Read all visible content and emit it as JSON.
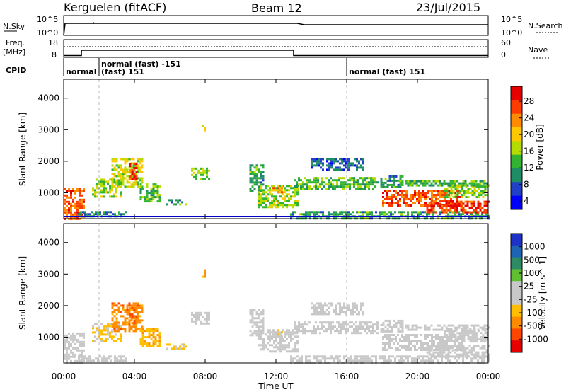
{
  "header": {
    "station": "Kerguelen (fitACF)",
    "beam": "Beam 12",
    "date": "23/Jul/2015"
  },
  "status_panels": {
    "nsky_label": "N.Sky",
    "nsky_ticks": [
      "10^5",
      "10^0"
    ],
    "nsearch_label": "N.Search",
    "nsearch_ticks": [
      "10^5",
      "10^0"
    ],
    "freq_label_line1": "Freq.",
    "freq_label_line2": "[MHz]",
    "freq_ticks": [
      "18",
      "8"
    ],
    "nave_label": "Nave",
    "nave_ticks": [
      "60",
      "0"
    ],
    "cpid_label": "CPID",
    "cpid_segments": [
      {
        "text": "normal",
        "start_h": 0.0
      },
      {
        "text": "normal (fast) -151",
        "start_h": 2.0
      },
      {
        "text": "(fast) 151",
        "start_h": 2.0
      },
      {
        "text": "normal (fast) 151",
        "start_h": 16.0
      }
    ],
    "freq_mhz": [
      {
        "from_h": 0,
        "to_h": 1.0,
        "value": 9
      },
      {
        "from_h": 1.0,
        "to_h": 13.0,
        "value": 12
      },
      {
        "from_h": 13.0,
        "to_h": 24,
        "value": 9
      }
    ]
  },
  "colors": {
    "power_scale": [
      "#0000ff",
      "#2040c8",
      "#1e8c64",
      "#32b432",
      "#b4dc00",
      "#ffc800",
      "#ff8c00",
      "#ff3c00",
      "#e60000"
    ],
    "velocity_scale": [
      "#1e32c8",
      "#1e64b4",
      "#2d8c64",
      "#5fbe32",
      "#c8c8c8",
      "#c8c8c8",
      "#ffbe00",
      "#ff8c00",
      "#ff4600",
      "#e60000"
    ]
  },
  "chart_data": [
    {
      "type": "heatmap",
      "title": "",
      "xlabel": "",
      "ylabel": "Slant Range [km]",
      "xlim": [
        0,
        24
      ],
      "ylim": [
        180,
        4600
      ],
      "x_ticks": [
        "00:00",
        "04:00",
        "08:00",
        "12:00",
        "16:00",
        "20:00",
        "00:00"
      ],
      "y_ticks": [
        "1000",
        "2000",
        "3000",
        "4000"
      ],
      "colorbar_label": "Power [dB]",
      "colorbar_ticks": [
        "28",
        "24",
        "20",
        "16",
        "12",
        "8",
        "4"
      ],
      "colorbar_range": [
        0,
        30
      ],
      "regions": [
        {
          "t0": 0.0,
          "t1": 1.1,
          "r0": 200,
          "r1": 1150,
          "v": 24
        },
        {
          "t0": 0.8,
          "t1": 3.5,
          "r0": 250,
          "r1": 420,
          "v": 8
        },
        {
          "t0": 1.6,
          "t1": 3.2,
          "r0": 900,
          "r1": 1450,
          "v": 14
        },
        {
          "t0": 2.7,
          "t1": 4.4,
          "r0": 1200,
          "r1": 2100,
          "v": 16
        },
        {
          "t0": 3.7,
          "t1": 4.1,
          "r0": 1450,
          "r1": 1950,
          "v": 26
        },
        {
          "t0": 4.3,
          "t1": 5.4,
          "r0": 700,
          "r1": 1300,
          "v": 12
        },
        {
          "t0": 5.8,
          "t1": 7.0,
          "r0": 650,
          "r1": 800,
          "v": 10
        },
        {
          "t0": 7.2,
          "t1": 8.2,
          "r0": 1400,
          "r1": 1800,
          "v": 14
        },
        {
          "t0": 7.8,
          "t1": 8.0,
          "r0": 2900,
          "r1": 3150,
          "v": 16
        },
        {
          "t0": 10.5,
          "t1": 11.3,
          "r0": 1050,
          "r1": 1900,
          "v": 10
        },
        {
          "t0": 11.0,
          "t1": 13.2,
          "r0": 550,
          "r1": 1250,
          "v": 14
        },
        {
          "t0": 11.8,
          "t1": 12.3,
          "r0": 1000,
          "r1": 1250,
          "v": 22
        },
        {
          "t0": 13.0,
          "t1": 17.8,
          "r0": 1150,
          "r1": 1500,
          "v": 12
        },
        {
          "t0": 14.0,
          "t1": 17.0,
          "r0": 1700,
          "r1": 2100,
          "v": 6
        },
        {
          "t0": 12.8,
          "t1": 24.0,
          "r0": 200,
          "r1": 420,
          "v": 10
        },
        {
          "t0": 17.9,
          "t1": 19.2,
          "r0": 1150,
          "r1": 1550,
          "v": 10
        },
        {
          "t0": 18.0,
          "t1": 22.5,
          "r0": 600,
          "r1": 1100,
          "v": 24
        },
        {
          "t0": 20.5,
          "t1": 24.0,
          "r0": 400,
          "r1": 750,
          "v": 26
        },
        {
          "t0": 21.5,
          "t1": 24.0,
          "r0": 850,
          "r1": 1300,
          "v": 14
        },
        {
          "t0": 19.3,
          "t1": 24.0,
          "r0": 1200,
          "r1": 1400,
          "v": 12
        }
      ]
    },
    {
      "type": "heatmap",
      "title": "",
      "xlabel": "Time UT",
      "ylabel": "Slant Range [km]",
      "xlim": [
        0,
        24
      ],
      "ylim": [
        180,
        4600
      ],
      "x_ticks": [
        "00:00",
        "04:00",
        "08:00",
        "12:00",
        "16:00",
        "20:00",
        "00:00"
      ],
      "y_ticks": [
        "1000",
        "2000",
        "3000",
        "4000"
      ],
      "colorbar_label": "Velocity [m s^-1]",
      "colorbar_ticks": [
        "1000",
        "500",
        "100",
        "25",
        "-25",
        "-100",
        "-500",
        "-1000"
      ],
      "colorbar_range": [
        -1200,
        1200
      ],
      "regions": [
        {
          "t0": 0.0,
          "t1": 1.1,
          "r0": 200,
          "r1": 1150,
          "v": 0
        },
        {
          "t0": 0.8,
          "t1": 3.5,
          "r0": 250,
          "r1": 420,
          "v": -60
        },
        {
          "t0": 1.6,
          "t1": 3.2,
          "r0": 900,
          "r1": 1450,
          "v": -300
        },
        {
          "t0": 2.7,
          "t1": 4.4,
          "r0": 1200,
          "r1": 2100,
          "v": -600
        },
        {
          "t0": 3.7,
          "t1": 4.1,
          "r0": 1450,
          "r1": 1950,
          "v": -700
        },
        {
          "t0": 4.3,
          "t1": 5.4,
          "r0": 700,
          "r1": 1300,
          "v": -400
        },
        {
          "t0": 5.8,
          "t1": 7.0,
          "r0": 650,
          "r1": 800,
          "v": -300
        },
        {
          "t0": 7.2,
          "t1": 8.2,
          "r0": 1400,
          "r1": 1800,
          "v": 0
        },
        {
          "t0": 7.8,
          "t1": 8.0,
          "r0": 2900,
          "r1": 3150,
          "v": -600
        },
        {
          "t0": 10.5,
          "t1": 11.3,
          "r0": 1050,
          "r1": 1900,
          "v": 0
        },
        {
          "t0": 11.0,
          "t1": 13.2,
          "r0": 550,
          "r1": 1250,
          "v": 80
        },
        {
          "t0": 11.8,
          "t1": 12.3,
          "r0": 1000,
          "r1": 1250,
          "v": -150
        },
        {
          "t0": 13.0,
          "t1": 17.8,
          "r0": 1150,
          "r1": 1500,
          "v": 0
        },
        {
          "t0": 14.0,
          "t1": 17.0,
          "r0": 1700,
          "r1": 2100,
          "v": 0
        },
        {
          "t0": 12.8,
          "t1": 24.0,
          "r0": 200,
          "r1": 420,
          "v": 60
        },
        {
          "t0": 17.9,
          "t1": 19.2,
          "r0": 1150,
          "r1": 1550,
          "v": 0
        },
        {
          "t0": 18.0,
          "t1": 22.5,
          "r0": 600,
          "r1": 1100,
          "v": 0
        },
        {
          "t0": 20.5,
          "t1": 24.0,
          "r0": 400,
          "r1": 750,
          "v": -60
        },
        {
          "t0": 21.5,
          "t1": 24.0,
          "r0": 850,
          "r1": 1300,
          "v": 0
        },
        {
          "t0": 19.3,
          "t1": 24.0,
          "r0": 1200,
          "r1": 1400,
          "v": 0
        }
      ]
    }
  ]
}
